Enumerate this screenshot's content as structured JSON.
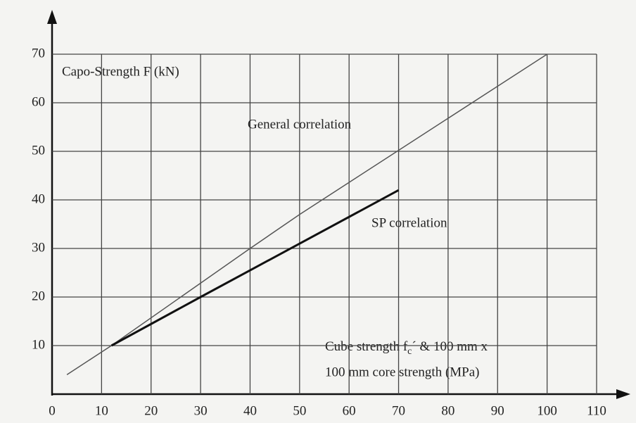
{
  "chart_data": {
    "type": "line",
    "y_label": "Capo-Strength F (kN)",
    "x_label": {
      "line1": {
        "prefix": "Cube strength f",
        "subscript": "c",
        "suffix": "´ & 100 mm x"
      },
      "line2": "100 mm core strength (MPa)"
    },
    "series": [
      {
        "name": "General correlation",
        "color": "#555555",
        "x": [
          3,
          12,
          40,
          50,
          100
        ],
        "values": [
          4,
          10,
          30,
          37,
          70
        ]
      },
      {
        "name": "SP correlation",
        "color": "#111111",
        "x": [
          12,
          30,
          70
        ],
        "values": [
          10,
          20,
          42
        ]
      }
    ],
    "xlim": [
      0,
      110
    ],
    "xticks": [
      0,
      10,
      20,
      30,
      40,
      50,
      60,
      70,
      80,
      90,
      100,
      110
    ],
    "ylim": [
      0,
      70
    ],
    "yticks": [
      10,
      20,
      30,
      40,
      50,
      60,
      70
    ],
    "grid": true
  }
}
